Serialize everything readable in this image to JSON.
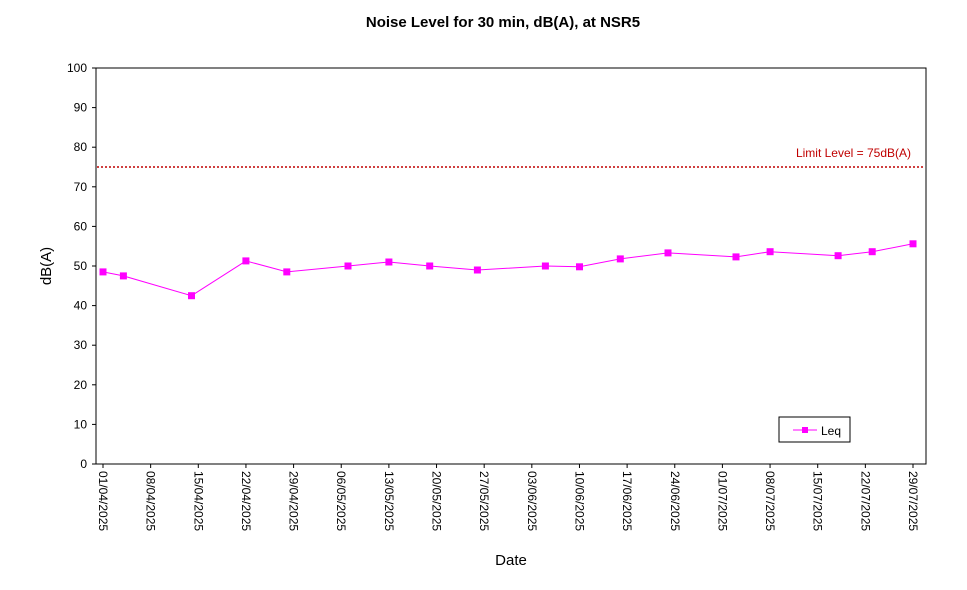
{
  "chart_data": {
    "type": "line",
    "title": "Noise Level for 30 min, dB(A), at NSR5",
    "xlabel": "Date",
    "ylabel": "dB(A)",
    "ylim": [
      0,
      100
    ],
    "ytick_step": 10,
    "xlim": [
      "2025-04-01",
      "2025-07-29"
    ],
    "xtick_labels": [
      "01/04/2025",
      "08/04/2025",
      "15/04/2025",
      "22/04/2025",
      "29/04/2025",
      "06/05/2025",
      "13/05/2025",
      "20/05/2025",
      "27/05/2025",
      "03/06/2025",
      "10/06/2025",
      "17/06/2025",
      "24/06/2025",
      "01/07/2025",
      "08/07/2025",
      "15/07/2025",
      "22/07/2025",
      "29/07/2025"
    ],
    "grid": false,
    "legend_position": "bottom-right",
    "series": [
      {
        "name": "Leq",
        "color": "#ff00ff",
        "marker": "square",
        "x": [
          "2025-04-01",
          "2025-04-04",
          "2025-04-14",
          "2025-04-22",
          "2025-04-28",
          "2025-05-07",
          "2025-05-13",
          "2025-05-19",
          "2025-05-26",
          "2025-06-05",
          "2025-06-10",
          "2025-06-16",
          "2025-06-23",
          "2025-07-03",
          "2025-07-08",
          "2025-07-18",
          "2025-07-23",
          "2025-07-29"
        ],
        "y": [
          48.5,
          47.5,
          42.5,
          51.3,
          48.5,
          50.0,
          51.0,
          50.0,
          49.0,
          50.0,
          49.8,
          51.8,
          53.3,
          52.3,
          53.6,
          52.6,
          53.6,
          55.6
        ]
      }
    ],
    "limit_line": {
      "value": 75,
      "label": "Limit Level = 75dB(A)",
      "color": "#c00000",
      "style": "dotted"
    }
  }
}
